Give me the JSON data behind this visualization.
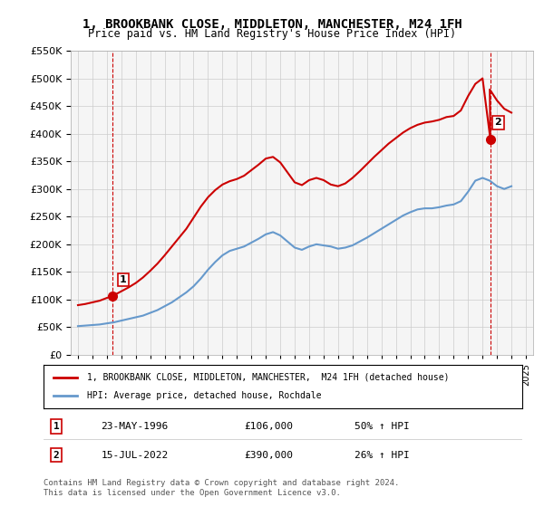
{
  "title": "1, BROOKBANK CLOSE, MIDDLETON, MANCHESTER, M24 1FH",
  "subtitle": "Price paid vs. HM Land Registry's House Price Index (HPI)",
  "legend_line1": "1, BROOKBANK CLOSE, MIDDLETON, MANCHESTER,  M24 1FH (detached house)",
  "legend_line2": "HPI: Average price, detached house, Rochdale",
  "sale1_label": "1",
  "sale1_date": "23-MAY-1996",
  "sale1_price": "£106,000",
  "sale1_hpi": "50% ↑ HPI",
  "sale1_year": 1996.39,
  "sale1_value": 106000,
  "sale2_label": "2",
  "sale2_date": "15-JUL-2022",
  "sale2_price": "£390,000",
  "sale2_hpi": "26% ↑ HPI",
  "sale2_year": 2022.54,
  "sale2_value": 390000,
  "copyright": "Contains HM Land Registry data © Crown copyright and database right 2024.\nThis data is licensed under the Open Government Licence v3.0.",
  "red_color": "#cc0000",
  "blue_color": "#6699cc",
  "grid_color": "#cccccc",
  "bg_color": "#ffffff",
  "plot_bg_color": "#f5f5f5",
  "ylim": [
    0,
    550000
  ],
  "xlim": [
    1993.5,
    2025.5
  ],
  "hpi_years": [
    1994,
    1994.5,
    1995,
    1995.5,
    1996,
    1996.5,
    1997,
    1997.5,
    1998,
    1998.5,
    1999,
    1999.5,
    2000,
    2000.5,
    2001,
    2001.5,
    2002,
    2002.5,
    2003,
    2003.5,
    2004,
    2004.5,
    2005,
    2005.5,
    2006,
    2006.5,
    2007,
    2007.5,
    2008,
    2008.5,
    2009,
    2009.5,
    2010,
    2010.5,
    2011,
    2011.5,
    2012,
    2012.5,
    2013,
    2013.5,
    2014,
    2014.5,
    2015,
    2015.5,
    2016,
    2016.5,
    2017,
    2017.5,
    2018,
    2018.5,
    2019,
    2019.5,
    2020,
    2020.5,
    2021,
    2021.5,
    2022,
    2022.5,
    2023,
    2023.5,
    2024
  ],
  "hpi_values": [
    52000,
    53000,
    54000,
    55000,
    57000,
    59000,
    62000,
    65000,
    68000,
    71000,
    76000,
    81000,
    88000,
    95000,
    104000,
    113000,
    124000,
    138000,
    154000,
    168000,
    180000,
    188000,
    192000,
    196000,
    203000,
    210000,
    218000,
    222000,
    216000,
    205000,
    194000,
    190000,
    196000,
    200000,
    198000,
    196000,
    192000,
    194000,
    198000,
    205000,
    212000,
    220000,
    228000,
    236000,
    244000,
    252000,
    258000,
    263000,
    265000,
    265000,
    267000,
    270000,
    272000,
    278000,
    295000,
    315000,
    320000,
    315000,
    305000,
    300000,
    305000
  ],
  "red_years": [
    1994,
    1994.5,
    1995,
    1995.5,
    1996,
    1996.39,
    1996.5,
    1997,
    1997.5,
    1998,
    1998.5,
    1999,
    1999.5,
    2000,
    2000.5,
    2001,
    2001.5,
    2002,
    2002.5,
    2003,
    2003.5,
    2004,
    2004.5,
    2005,
    2005.5,
    2006,
    2006.5,
    2007,
    2007.5,
    2008,
    2008.5,
    2009,
    2009.5,
    2010,
    2010.5,
    2011,
    2011.5,
    2012,
    2012.5,
    2013,
    2013.5,
    2014,
    2014.5,
    2015,
    2015.5,
    2016,
    2016.5,
    2017,
    2017.5,
    2018,
    2018.5,
    2019,
    2019.5,
    2020,
    2020.5,
    2021,
    2021.5,
    2022,
    2022.54,
    2022.5,
    2023,
    2023.5,
    2024
  ],
  "red_values": [
    90000,
    92000,
    95000,
    98000,
    103000,
    106000,
    108000,
    115000,
    122000,
    130000,
    140000,
    152000,
    165000,
    180000,
    196000,
    212000,
    228000,
    248000,
    268000,
    285000,
    298000,
    308000,
    314000,
    318000,
    324000,
    334000,
    344000,
    355000,
    358000,
    348000,
    330000,
    312000,
    307000,
    316000,
    320000,
    316000,
    308000,
    305000,
    310000,
    320000,
    332000,
    345000,
    358000,
    370000,
    382000,
    392000,
    402000,
    410000,
    416000,
    420000,
    422000,
    425000,
    430000,
    432000,
    442000,
    468000,
    490000,
    500000,
    390000,
    480000,
    460000,
    445000,
    438000
  ]
}
